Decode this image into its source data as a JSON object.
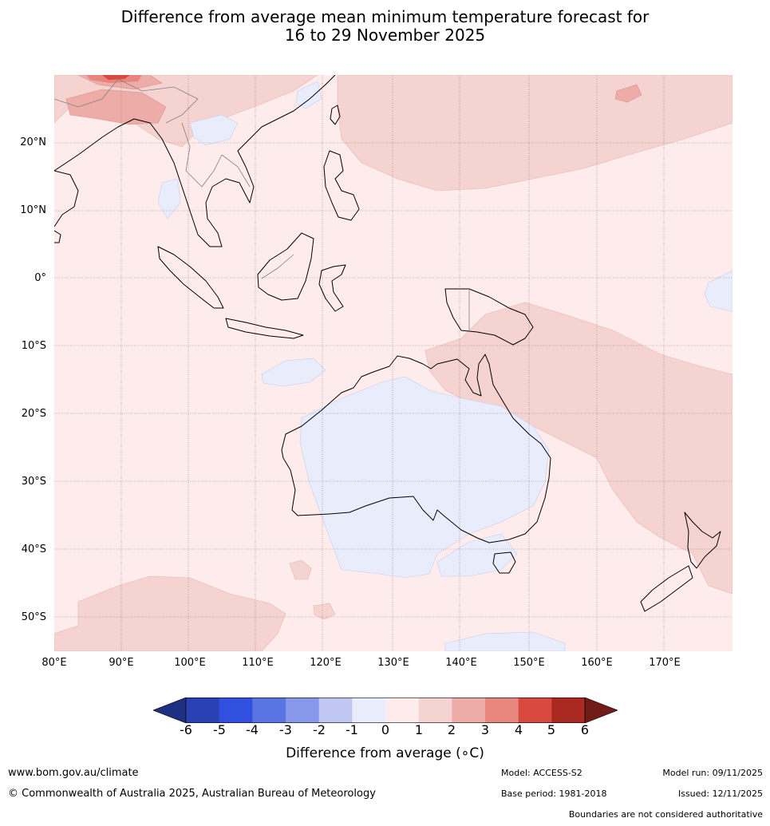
{
  "title": {
    "line1": "Difference from average mean minimum temperature forecast for",
    "line2": "16 to 29 November 2025"
  },
  "map": {
    "lat_labels": [
      "20°N",
      "10°N",
      "0°",
      "10°S",
      "20°S",
      "30°S",
      "40°S",
      "50°S"
    ],
    "lon_labels": [
      "80°E",
      "90°E",
      "100°E",
      "110°E",
      "120°E",
      "130°E",
      "140°E",
      "150°E",
      "160°E",
      "170°E"
    ],
    "colors": {
      "ocean_base": "#fdeceb",
      "warm_1_2": "#f5d3d0",
      "warm_2_3": "#eeaca8",
      "warm_3_4": "#e8867e",
      "warm_4_5": "#d9493d",
      "cool_0_1": "#e9ecfa",
      "coast": "#000000",
      "border": "#808080"
    }
  },
  "colorbar": {
    "ticks": [
      "-6",
      "-5",
      "-4",
      "-3",
      "-2",
      "-1",
      "0",
      "1",
      "2",
      "3",
      "4",
      "5",
      "6"
    ],
    "colors": [
      "#1f2f82",
      "#2a41b3",
      "#3150e0",
      "#5a74e3",
      "#8798ea",
      "#c0c7f3",
      "#e9ecfa",
      "#fdeceb",
      "#f5d3d0",
      "#eeaca8",
      "#e8867e",
      "#d9493d",
      "#aa2a22",
      "#721c17"
    ],
    "label": "Difference from average (∘C)"
  },
  "footer": {
    "website": "www.bom.gov.au/climate",
    "copyright": "© Commonwealth of Australia 2025, Australian Bureau of Meteorology",
    "model": "Model: ACCESS-S2",
    "base_period": "Base period: 1981-2018",
    "model_run": "Model run: 09/11/2025",
    "issued": "Issued: 12/11/2025",
    "boundaries_note": "Boundaries are not considered authoritative"
  }
}
